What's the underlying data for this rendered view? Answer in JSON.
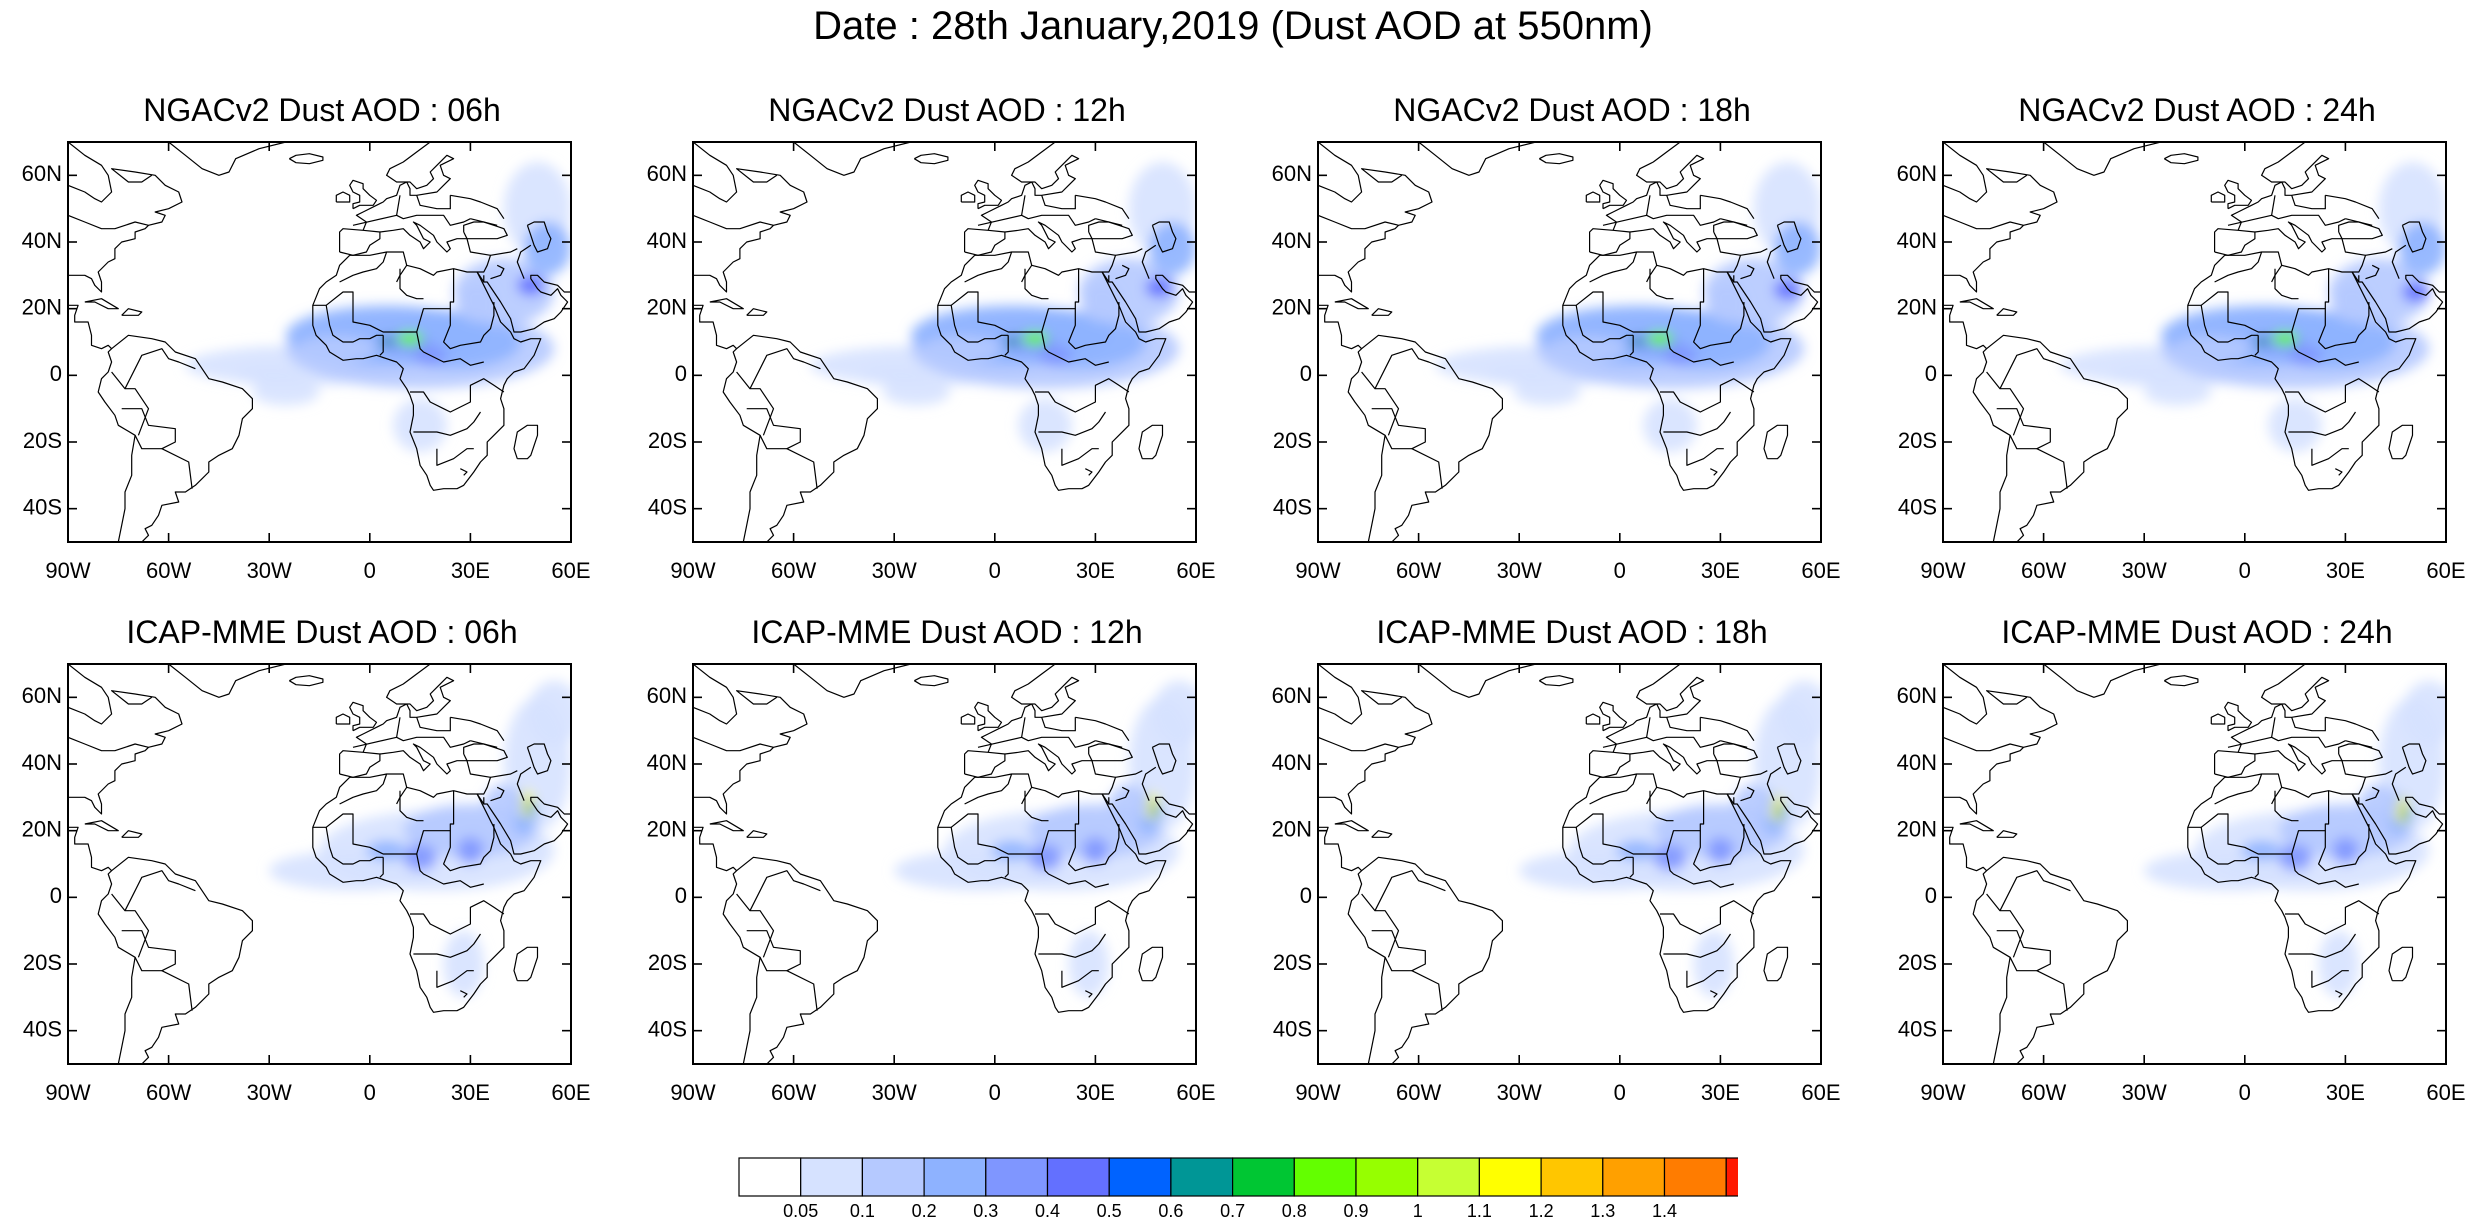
{
  "title": "Date : 28th January,2019 (Dust AOD at 550nm)",
  "panels": [
    {
      "title": "NGACv2 Dust AOD : 06h",
      "hour": 6,
      "model": "NGACv2"
    },
    {
      "title": "NGACv2 Dust AOD : 12h",
      "hour": 12,
      "model": "NGACv2"
    },
    {
      "title": "NGACv2 Dust AOD : 18h",
      "hour": 18,
      "model": "NGACv2"
    },
    {
      "title": "NGACv2 Dust AOD : 24h",
      "hour": 24,
      "model": "NGACv2"
    },
    {
      "title": "ICAP-MME Dust AOD : 06h",
      "hour": 6,
      "model": "ICAP-MME"
    },
    {
      "title": "ICAP-MME Dust AOD : 12h",
      "hour": 12,
      "model": "ICAP-MME"
    },
    {
      "title": "ICAP-MME Dust AOD : 18h",
      "hour": 18,
      "model": "ICAP-MME"
    },
    {
      "title": "ICAP-MME Dust AOD : 24h",
      "hour": 24,
      "model": "ICAP-MME"
    }
  ],
  "map": {
    "lon_range": [
      -90,
      60
    ],
    "lat_range": [
      -50,
      70
    ],
    "lat_ticks": [
      {
        "value": 60,
        "label": "60N"
      },
      {
        "value": 40,
        "label": "40N"
      },
      {
        "value": 20,
        "label": "20N"
      },
      {
        "value": 0,
        "label": "0"
      },
      {
        "value": -20,
        "label": "20S"
      },
      {
        "value": -40,
        "label": "40S"
      }
    ],
    "lon_ticks": [
      {
        "value": -90,
        "label": "90W"
      },
      {
        "value": -60,
        "label": "60W"
      },
      {
        "value": -30,
        "label": "30W"
      },
      {
        "value": 0,
        "label": "0"
      },
      {
        "value": 30,
        "label": "30E"
      },
      {
        "value": 60,
        "label": "60E"
      }
    ]
  },
  "colorbar": {
    "colors": [
      "#ffffff",
      "#d6e2ff",
      "#b5c9ff",
      "#8eb2ff",
      "#7f96ff",
      "#6370ff",
      "#0063ff",
      "#009696",
      "#00c633",
      "#63ff00",
      "#96ff00",
      "#c6ff33",
      "#ffff00",
      "#ffc600",
      "#ffa000",
      "#ff7c00",
      "#ff1900"
    ],
    "labels": [
      "0.05",
      "0.1",
      "0.2",
      "0.3",
      "0.4",
      "0.5",
      "0.6",
      "0.7",
      "0.8",
      "0.9",
      "1",
      "1.1",
      "1.2",
      "1.3",
      "1.4"
    ]
  }
}
